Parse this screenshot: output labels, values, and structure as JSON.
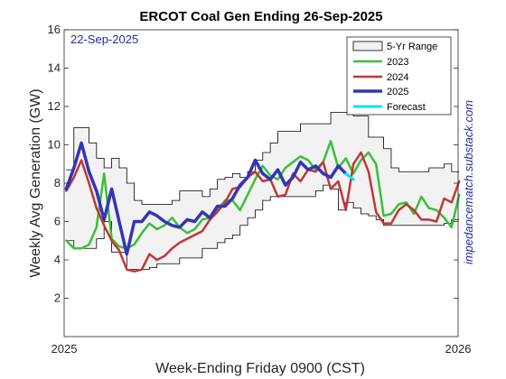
{
  "chart_data": {
    "type": "line",
    "title": "ERCOT Coal Gen Ending 26-Sep-2025",
    "xlabel": "Week-Ending Friday 0900 (CST)",
    "ylabel": "Weekly Avg Generation (GW)",
    "date_stamp": "22-Sep-2025",
    "side_note": "impedancematch.substack.com",
    "x_ticks": [
      "2025",
      "2026"
    ],
    "xlim": [
      "2025-01-01",
      "2026-01-01"
    ],
    "ylim": [
      0,
      16
    ],
    "y_ticks": [
      2,
      4,
      6,
      8,
      10,
      12,
      14,
      16
    ],
    "grid": false,
    "legend_position": "top-right",
    "legend": [
      "5-Yr Range",
      "2023",
      "2024",
      "2025",
      "Forecast"
    ],
    "range": {
      "name": "5-Yr Range",
      "color": "#f2f2f2",
      "edge": "#000000",
      "weeks": [
        1,
        2,
        3,
        4,
        5,
        6,
        7,
        8,
        9,
        10,
        11,
        12,
        13,
        14,
        15,
        16,
        17,
        18,
        19,
        20,
        21,
        22,
        23,
        24,
        25,
        26,
        27,
        28,
        29,
        30,
        31,
        32,
        33,
        34,
        35,
        36,
        37,
        38,
        39,
        40,
        41,
        42,
        43,
        44,
        45,
        46,
        47,
        48,
        49,
        50,
        51,
        52,
        53
      ],
      "upper": [
        8.7,
        10.9,
        10.9,
        10.1,
        9.3,
        8.8,
        9.3,
        8.8,
        8.0,
        7.1,
        6.9,
        6.9,
        6.9,
        6.9,
        7.1,
        7.6,
        7.6,
        7.6,
        7.3,
        7.7,
        8.2,
        8.3,
        8.5,
        8.3,
        8.6,
        9.2,
        9.6,
        10.1,
        10.7,
        10.7,
        10.7,
        11.1,
        11.1,
        11.1,
        11.1,
        11.7,
        11.7,
        11.7,
        11.5,
        11.5,
        10.4,
        10.4,
        9.8,
        8.8,
        8.6,
        8.6,
        8.6,
        8.6,
        8.8,
        8.8,
        9.0,
        8.6,
        8.6
      ],
      "lower": [
        5.0,
        4.6,
        4.6,
        4.6,
        5.1,
        6.0,
        4.4,
        4.4,
        3.5,
        3.5,
        3.5,
        3.6,
        3.8,
        3.8,
        3.8,
        4.1,
        4.1,
        4.1,
        4.6,
        4.6,
        4.9,
        5.1,
        5.3,
        5.8,
        6.2,
        6.6,
        7.1,
        7.3,
        7.3,
        7.3,
        7.3,
        7.3,
        7.3,
        7.6,
        7.9,
        7.7,
        6.6,
        7.0,
        6.7,
        6.4,
        6.3,
        6.1,
        5.8,
        5.8,
        5.8,
        5.8,
        5.8,
        5.8,
        5.8,
        5.8,
        5.9,
        6.1,
        6.1
      ]
    },
    "series": [
      {
        "name": "2023",
        "color": "#39c039",
        "width": 2.5,
        "weeks": [
          1,
          2,
          3,
          4,
          5,
          6,
          7,
          8,
          9,
          10,
          11,
          12,
          13,
          14,
          15,
          16,
          17,
          18,
          19,
          20,
          21,
          22,
          23,
          24,
          25,
          26,
          27,
          28,
          29,
          30,
          31,
          32,
          33,
          34,
          35,
          36,
          37,
          38,
          39,
          40,
          41,
          42,
          43,
          44,
          45,
          46,
          47,
          48,
          49,
          50,
          51,
          52,
          53
        ],
        "values": [
          5.0,
          4.6,
          4.6,
          4.8,
          5.7,
          8.5,
          5.1,
          4.7,
          4.6,
          4.8,
          5.4,
          5.9,
          5.6,
          5.8,
          6.2,
          5.7,
          5.4,
          5.6,
          6.1,
          6.2,
          6.6,
          7.1,
          7.1,
          6.6,
          7.4,
          8.2,
          8.9,
          8.4,
          8.2,
          8.8,
          9.1,
          9.4,
          9.2,
          8.7,
          9.1,
          10.2,
          8.8,
          9.3,
          8.5,
          9.2,
          9.6,
          9.0,
          6.3,
          6.4,
          6.9,
          7.0,
          6.4,
          7.3,
          6.7,
          6.6,
          6.2,
          5.7,
          7.4
        ]
      },
      {
        "name": "2024",
        "color": "#c03737",
        "width": 2.5,
        "weeks": [
          1,
          2,
          3,
          4,
          5,
          6,
          7,
          8,
          9,
          10,
          11,
          12,
          13,
          14,
          15,
          16,
          17,
          18,
          19,
          20,
          21,
          22,
          23,
          24,
          25,
          26,
          27,
          28,
          29,
          30,
          31,
          32,
          33,
          34,
          35,
          36,
          37,
          38,
          39,
          40,
          41,
          42,
          43,
          44,
          45,
          46,
          47,
          48,
          49,
          50,
          51,
          52,
          53
        ],
        "values": [
          7.6,
          8.3,
          9.2,
          8.0,
          6.7,
          5.8,
          5.0,
          4.5,
          3.5,
          3.4,
          3.5,
          4.3,
          4.0,
          4.2,
          4.6,
          4.9,
          5.1,
          5.3,
          5.5,
          6.1,
          6.5,
          7.0,
          7.7,
          7.8,
          8.3,
          8.6,
          8.1,
          8.2,
          7.3,
          7.4,
          8.5,
          8.1,
          8.7,
          8.6,
          9.1,
          7.7,
          8.1,
          6.6,
          9.0,
          9.6,
          8.6,
          6.5,
          5.9,
          5.9,
          6.6,
          6.9,
          6.6,
          6.1,
          6.1,
          6.0,
          7.2,
          7.0,
          8.1
        ]
      },
      {
        "name": "2025",
        "color": "#3434b8",
        "width": 3.5,
        "weeks": [
          1,
          2,
          3,
          4,
          5,
          6,
          7,
          8,
          9,
          10,
          11,
          12,
          13,
          14,
          15,
          16,
          17,
          18,
          19,
          20,
          21,
          22,
          23,
          24,
          25,
          26,
          27,
          28,
          29,
          30,
          31,
          32,
          33,
          34,
          35,
          36,
          37,
          38
        ],
        "values": [
          7.7,
          8.8,
          10.1,
          8.6,
          7.6,
          6.1,
          7.7,
          6.0,
          4.3,
          6.0,
          6.0,
          6.5,
          6.3,
          6.0,
          5.8,
          5.7,
          6.1,
          6.0,
          6.5,
          6.2,
          6.8,
          6.8,
          7.2,
          7.9,
          8.3,
          9.2,
          8.5,
          8.2,
          8.7,
          7.9,
          8.3,
          9.1,
          8.7,
          8.9,
          8.5,
          8.3,
          8.9,
          8.5
        ]
      },
      {
        "name": "Forecast",
        "color": "#00e5ee",
        "width": 3,
        "weeks": [
          38,
          39
        ],
        "values": [
          8.5,
          8.2
        ]
      }
    ]
  }
}
